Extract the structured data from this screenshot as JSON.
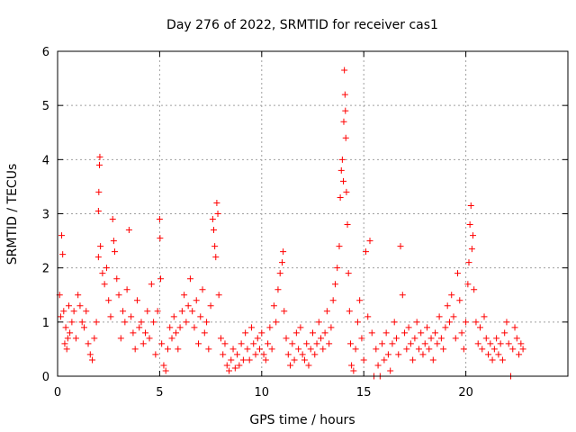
{
  "chart_data": {
    "type": "scatter",
    "title": "Day 276 of 2022, SRMTID for receiver cas1",
    "xlabel": "GPS time / hours",
    "ylabel": "SRMTID / TECUs",
    "xlim": [
      0,
      25
    ],
    "ylim": [
      0,
      6
    ],
    "xticks": [
      0,
      5,
      10,
      15,
      20
    ],
    "yticks": [
      0,
      1,
      2,
      3,
      4,
      5,
      6
    ],
    "grid": true,
    "marker": "+",
    "color": "#ff0000",
    "series": [
      {
        "name": "cas1",
        "points": [
          [
            0.1,
            1.5
          ],
          [
            0.15,
            1.1
          ],
          [
            0.2,
            2.6
          ],
          [
            0.25,
            2.25
          ],
          [
            0.3,
            1.2
          ],
          [
            0.35,
            0.6
          ],
          [
            0.4,
            0.9
          ],
          [
            0.45,
            0.5
          ],
          [
            0.5,
            0.7
          ],
          [
            0.55,
            1.3
          ],
          [
            0.6,
            0.8
          ],
          [
            0.7,
            1.0
          ],
          [
            0.8,
            1.2
          ],
          [
            0.9,
            0.7
          ],
          [
            1.0,
            1.5
          ],
          [
            1.1,
            1.3
          ],
          [
            1.2,
            1.0
          ],
          [
            1.3,
            0.9
          ],
          [
            1.4,
            1.2
          ],
          [
            1.5,
            0.6
          ],
          [
            1.6,
            0.4
          ],
          [
            1.7,
            0.3
          ],
          [
            1.8,
            0.7
          ],
          [
            1.9,
            1.0
          ],
          [
            2.0,
            2.2
          ],
          [
            2.0,
            3.05
          ],
          [
            2.02,
            3.4
          ],
          [
            2.05,
            3.9
          ],
          [
            2.07,
            4.05
          ],
          [
            2.1,
            2.4
          ],
          [
            2.2,
            1.9
          ],
          [
            2.3,
            1.7
          ],
          [
            2.4,
            2.0
          ],
          [
            2.5,
            1.4
          ],
          [
            2.6,
            1.1
          ],
          [
            2.7,
            2.9
          ],
          [
            2.75,
            2.5
          ],
          [
            2.8,
            2.3
          ],
          [
            2.9,
            1.8
          ],
          [
            3.0,
            1.5
          ],
          [
            3.1,
            0.7
          ],
          [
            3.2,
            1.2
          ],
          [
            3.3,
            1.0
          ],
          [
            3.4,
            1.6
          ],
          [
            3.5,
            2.7
          ],
          [
            3.6,
            1.1
          ],
          [
            3.7,
            0.8
          ],
          [
            3.8,
            0.5
          ],
          [
            3.9,
            1.4
          ],
          [
            4.0,
            0.9
          ],
          [
            4.1,
            1.0
          ],
          [
            4.2,
            0.6
          ],
          [
            4.3,
            0.8
          ],
          [
            4.4,
            1.2
          ],
          [
            4.5,
            0.7
          ],
          [
            4.6,
            1.7
          ],
          [
            4.7,
            1.0
          ],
          [
            4.8,
            0.4
          ],
          [
            4.9,
            1.2
          ],
          [
            5.0,
            2.9
          ],
          [
            5.02,
            2.55
          ],
          [
            5.05,
            1.8
          ],
          [
            5.1,
            0.6
          ],
          [
            5.2,
            0.2
          ],
          [
            5.3,
            0.1
          ],
          [
            5.4,
            0.5
          ],
          [
            5.5,
            0.9
          ],
          [
            5.6,
            0.7
          ],
          [
            5.7,
            1.1
          ],
          [
            5.8,
            0.8
          ],
          [
            5.9,
            0.5
          ],
          [
            6.0,
            0.9
          ],
          [
            6.1,
            1.2
          ],
          [
            6.2,
            1.5
          ],
          [
            6.3,
            1.0
          ],
          [
            6.4,
            1.3
          ],
          [
            6.5,
            1.8
          ],
          [
            6.6,
            1.2
          ],
          [
            6.7,
            0.9
          ],
          [
            6.8,
            1.4
          ],
          [
            6.9,
            0.6
          ],
          [
            7.0,
            1.1
          ],
          [
            7.1,
            1.6
          ],
          [
            7.2,
            0.8
          ],
          [
            7.3,
            1.0
          ],
          [
            7.4,
            0.5
          ],
          [
            7.5,
            1.3
          ],
          [
            7.6,
            2.9
          ],
          [
            7.65,
            2.7
          ],
          [
            7.7,
            2.4
          ],
          [
            7.75,
            2.2
          ],
          [
            7.8,
            3.2
          ],
          [
            7.85,
            3.0
          ],
          [
            7.9,
            1.5
          ],
          [
            8.0,
            0.7
          ],
          [
            8.1,
            0.4
          ],
          [
            8.2,
            0.6
          ],
          [
            8.3,
            0.2
          ],
          [
            8.4,
            0.1
          ],
          [
            8.5,
            0.3
          ],
          [
            8.6,
            0.5
          ],
          [
            8.7,
            0.15
          ],
          [
            8.8,
            0.4
          ],
          [
            8.9,
            0.2
          ],
          [
            9.0,
            0.6
          ],
          [
            9.1,
            0.3
          ],
          [
            9.2,
            0.8
          ],
          [
            9.3,
            0.5
          ],
          [
            9.4,
            0.3
          ],
          [
            9.5,
            0.9
          ],
          [
            9.6,
            0.6
          ],
          [
            9.7,
            0.4
          ],
          [
            9.8,
            0.7
          ],
          [
            9.9,
            0.5
          ],
          [
            10.0,
            0.8
          ],
          [
            10.1,
            0.4
          ],
          [
            10.2,
            0.3
          ],
          [
            10.3,
            0.6
          ],
          [
            10.4,
            0.9
          ],
          [
            10.5,
            0.5
          ],
          [
            10.6,
            1.3
          ],
          [
            10.7,
            1.0
          ],
          [
            10.8,
            1.6
          ],
          [
            10.9,
            1.9
          ],
          [
            11.0,
            2.1
          ],
          [
            11.05,
            2.3
          ],
          [
            11.1,
            1.2
          ],
          [
            11.2,
            0.7
          ],
          [
            11.3,
            0.4
          ],
          [
            11.4,
            0.2
          ],
          [
            11.5,
            0.6
          ],
          [
            11.6,
            0.3
          ],
          [
            11.7,
            0.8
          ],
          [
            11.8,
            0.5
          ],
          [
            11.9,
            0.9
          ],
          [
            12.0,
            0.4
          ],
          [
            12.1,
            0.3
          ],
          [
            12.2,
            0.6
          ],
          [
            12.3,
            0.2
          ],
          [
            12.4,
            0.5
          ],
          [
            12.5,
            0.8
          ],
          [
            12.6,
            0.4
          ],
          [
            12.7,
            0.6
          ],
          [
            12.8,
            1.0
          ],
          [
            12.9,
            0.7
          ],
          [
            13.0,
            0.5
          ],
          [
            13.1,
            0.8
          ],
          [
            13.2,
            1.2
          ],
          [
            13.3,
            0.6
          ],
          [
            13.4,
            0.9
          ],
          [
            13.5,
            1.4
          ],
          [
            13.6,
            1.7
          ],
          [
            13.7,
            2.0
          ],
          [
            13.8,
            2.4
          ],
          [
            13.85,
            3.3
          ],
          [
            13.9,
            3.8
          ],
          [
            13.95,
            4.0
          ],
          [
            14.0,
            3.6
          ],
          [
            14.02,
            4.7
          ],
          [
            14.05,
            5.65
          ],
          [
            14.08,
            5.2
          ],
          [
            14.1,
            4.9
          ],
          [
            14.12,
            4.4
          ],
          [
            14.15,
            3.4
          ],
          [
            14.2,
            2.8
          ],
          [
            14.25,
            1.9
          ],
          [
            14.3,
            1.2
          ],
          [
            14.35,
            0.6
          ],
          [
            14.4,
            0.2
          ],
          [
            14.5,
            0.1
          ],
          [
            14.6,
            0.5
          ],
          [
            14.7,
            1.0
          ],
          [
            14.8,
            1.4
          ],
          [
            14.9,
            0.7
          ],
          [
            15.0,
            0.3
          ],
          [
            15.1,
            2.3
          ],
          [
            15.2,
            1.1
          ],
          [
            15.3,
            2.5
          ],
          [
            15.4,
            0.8
          ],
          [
            15.5,
            0.0
          ],
          [
            15.6,
            0.5
          ],
          [
            15.7,
            0.2
          ],
          [
            15.8,
            0.0
          ],
          [
            15.9,
            0.6
          ],
          [
            16.0,
            0.3
          ],
          [
            16.1,
            0.8
          ],
          [
            16.2,
            0.4
          ],
          [
            16.3,
            0.1
          ],
          [
            16.4,
            0.6
          ],
          [
            16.5,
            1.0
          ],
          [
            16.6,
            0.7
          ],
          [
            16.7,
            0.4
          ],
          [
            16.8,
            2.4
          ],
          [
            16.9,
            1.5
          ],
          [
            17.0,
            0.8
          ],
          [
            17.1,
            0.5
          ],
          [
            17.2,
            0.9
          ],
          [
            17.3,
            0.6
          ],
          [
            17.4,
            0.3
          ],
          [
            17.5,
            0.7
          ],
          [
            17.6,
            1.0
          ],
          [
            17.7,
            0.5
          ],
          [
            17.8,
            0.8
          ],
          [
            17.9,
            0.4
          ],
          [
            18.0,
            0.6
          ],
          [
            18.1,
            0.9
          ],
          [
            18.2,
            0.5
          ],
          [
            18.3,
            0.7
          ],
          [
            18.4,
            0.3
          ],
          [
            18.5,
            0.8
          ],
          [
            18.6,
            0.6
          ],
          [
            18.7,
            1.1
          ],
          [
            18.8,
            0.7
          ],
          [
            18.9,
            0.5
          ],
          [
            19.0,
            0.9
          ],
          [
            19.1,
            1.3
          ],
          [
            19.2,
            1.0
          ],
          [
            19.3,
            1.5
          ],
          [
            19.4,
            1.1
          ],
          [
            19.5,
            0.7
          ],
          [
            19.6,
            1.9
          ],
          [
            19.7,
            1.4
          ],
          [
            19.8,
            0.8
          ],
          [
            19.9,
            0.5
          ],
          [
            20.0,
            1.0
          ],
          [
            20.1,
            1.7
          ],
          [
            20.15,
            2.1
          ],
          [
            20.2,
            2.8
          ],
          [
            20.25,
            3.15
          ],
          [
            20.3,
            2.35
          ],
          [
            20.35,
            2.6
          ],
          [
            20.4,
            1.6
          ],
          [
            20.5,
            1.0
          ],
          [
            20.6,
            0.6
          ],
          [
            20.7,
            0.9
          ],
          [
            20.8,
            0.5
          ],
          [
            20.9,
            1.1
          ],
          [
            21.0,
            0.7
          ],
          [
            21.1,
            0.4
          ],
          [
            21.2,
            0.6
          ],
          [
            21.3,
            0.3
          ],
          [
            21.4,
            0.5
          ],
          [
            21.5,
            0.7
          ],
          [
            21.6,
            0.4
          ],
          [
            21.7,
            0.6
          ],
          [
            21.8,
            0.3
          ],
          [
            21.9,
            0.8
          ],
          [
            22.0,
            1.0
          ],
          [
            22.1,
            0.6
          ],
          [
            22.2,
            0.0
          ],
          [
            22.3,
            0.5
          ],
          [
            22.4,
            0.9
          ],
          [
            22.5,
            0.7
          ],
          [
            22.6,
            0.4
          ],
          [
            22.7,
            0.6
          ],
          [
            22.8,
            0.5
          ]
        ]
      }
    ]
  }
}
